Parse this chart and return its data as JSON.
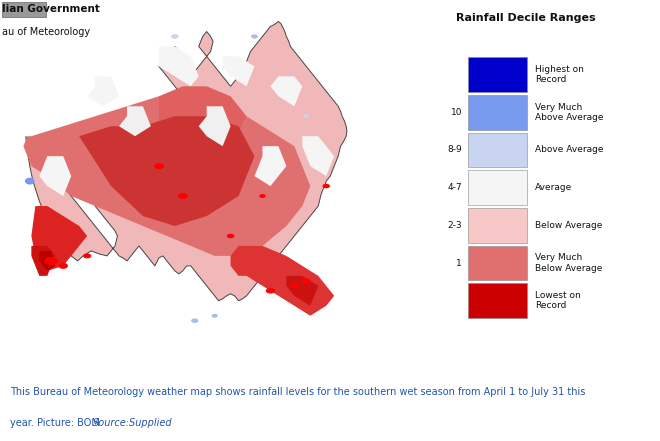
{
  "legend_title": "Rainfall Decile Ranges",
  "legend_items": [
    {
      "label": "Highest on\nRecord",
      "color": "#0000cc",
      "decile": null
    },
    {
      "label": "Very Much\nAbove Average",
      "color": "#7799ee",
      "decile": "10"
    },
    {
      "label": "Above Average",
      "color": "#c8d4f0",
      "decile": "8-9"
    },
    {
      "label": "Average",
      "color": "#f5f5f5",
      "decile": "4-7"
    },
    {
      "label": "Below Average",
      "color": "#f8c8c8",
      "decile": "2-3"
    },
    {
      "label": "Very Much\nBelow Average",
      "color": "#e07070",
      "decile": "1"
    },
    {
      "label": "Lowest on\nRecord",
      "color": "#cc0000",
      "decile": null
    }
  ],
  "caption_line1": "This Bureau of Meteorology weather map shows rainfall levels for the southern wet season from April 1 to July 31 this",
  "caption_line2_normal": "year. Picture: BOM ",
  "caption_line2_italic": "Source:Supplied",
  "caption_color": "#2255aa",
  "gov_text1": "lian Government",
  "gov_text2": "au of Meteorology",
  "bg_color": "#ffffff"
}
